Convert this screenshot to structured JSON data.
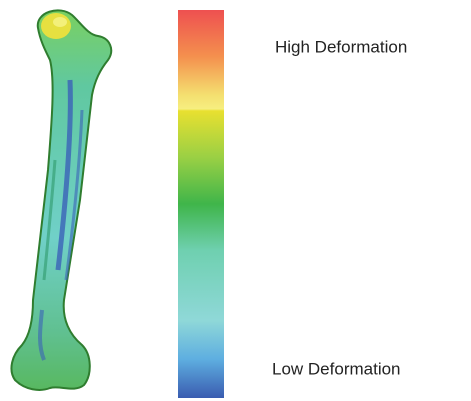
{
  "legend": {
    "high_label": "High Deformation",
    "low_label": "Low Deformation"
  }
}
